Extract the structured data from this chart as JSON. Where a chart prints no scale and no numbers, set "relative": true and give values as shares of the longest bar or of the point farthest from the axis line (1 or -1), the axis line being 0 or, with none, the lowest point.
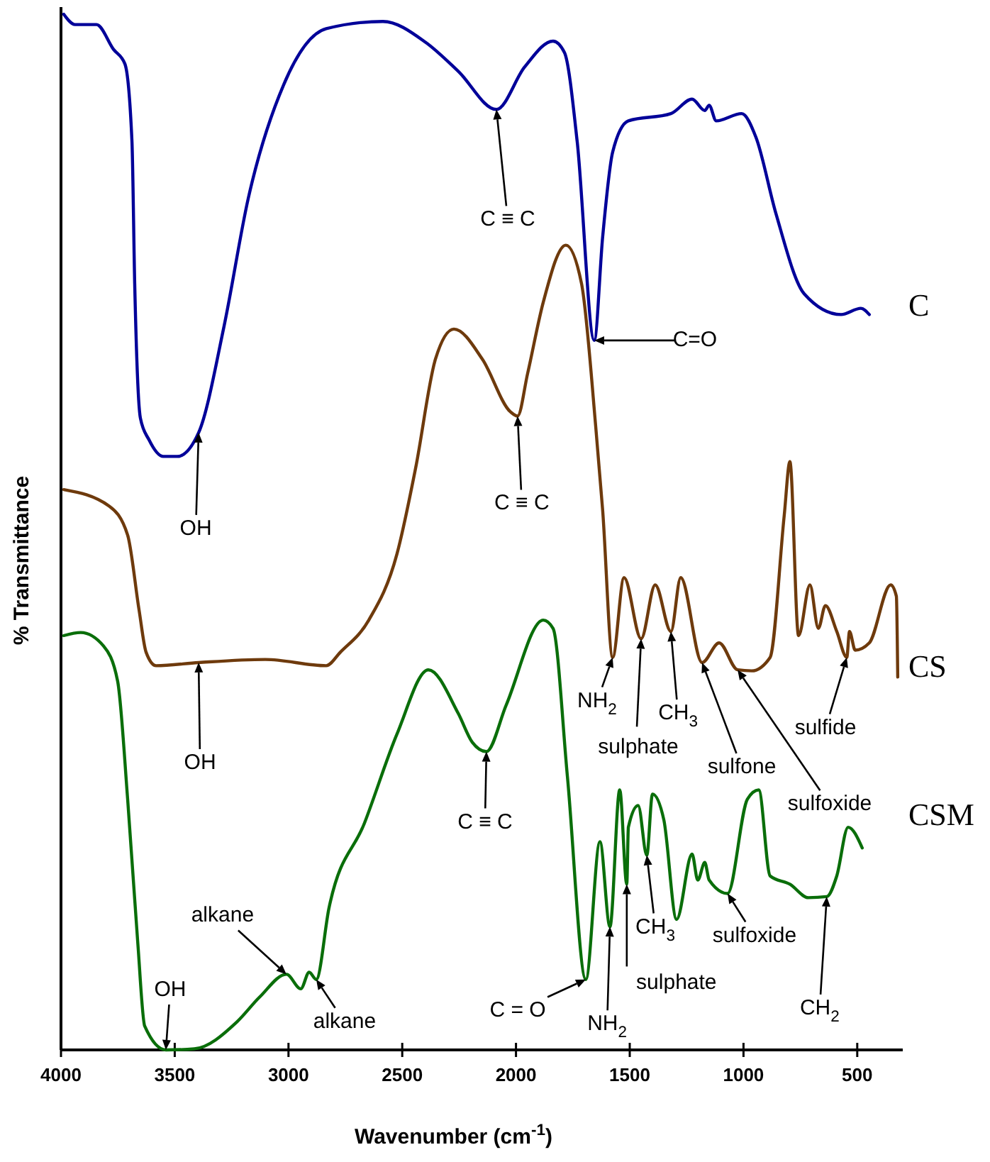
{
  "chart_data": {
    "type": "line",
    "relative": true,
    "xlabel": "Wavenumber (cm$^{-1}$)",
    "ylabel": "% Transmittance",
    "xlim": [
      4000,
      300
    ],
    "xticks": [
      4000,
      3500,
      3000,
      2500,
      2000,
      1500,
      1000,
      500
    ],
    "series": [
      {
        "name": "C",
        "color": "#000099",
        "x": [
          3988,
          3938,
          3844,
          3769,
          3719,
          3688,
          3676,
          3651,
          3613,
          3551,
          3489,
          3395,
          3283,
          3177,
          3021,
          2834,
          2585,
          2398,
          2254,
          2086,
          1962,
          1837,
          1787,
          1731,
          1656,
          1619,
          1575,
          1506,
          1319,
          1226,
          1170,
          1151,
          1120,
          1008,
          945,
          858,
          733,
          571,
          484,
          447
        ],
        "values": [
          1,
          0.99,
          0.99,
          0.966,
          0.952,
          0.877,
          0.74,
          0.61,
          0.589,
          0.573,
          0.573,
          0.596,
          0.699,
          0.822,
          0.932,
          0.986,
          0.993,
          0.973,
          0.945,
          0.908,
          0.949,
          0.974,
          0.963,
          0.877,
          0.685,
          0.785,
          0.867,
          0.897,
          0.904,
          0.918,
          0.907,
          0.912,
          0.897,
          0.904,
          0.881,
          0.808,
          0.73,
          0.71,
          0.716,
          0.71
        ]
      },
      {
        "name": "CS",
        "color": "#6e3a0c",
        "x": [
          3988,
          3788,
          3707,
          3657,
          3626,
          3582,
          3395,
          3102,
          2834,
          2772,
          2647,
          2523,
          2441,
          2354,
          2273,
          2148,
          2024,
          1993,
          1949,
          1880,
          1781,
          1712,
          1650,
          1619,
          1575,
          1525,
          1450,
          1388,
          1319,
          1276,
          1182,
          1107,
          1026,
          964,
          883,
          821,
          796,
          758,
          708,
          671,
          640,
          590,
          546,
          534,
          509,
          447,
          353,
          328,
          322
        ],
        "values": [
          0.541,
          0.525,
          0.497,
          0.425,
          0.384,
          0.371,
          0.374,
          0.377,
          0.371,
          0.384,
          0.415,
          0.479,
          0.562,
          0.667,
          0.696,
          0.667,
          0.616,
          0.612,
          0.653,
          0.722,
          0.777,
          0.74,
          0.603,
          0.521,
          0.379,
          0.456,
          0.397,
          0.449,
          0.404,
          0.456,
          0.374,
          0.393,
          0.367,
          0.366,
          0.379,
          0.516,
          0.568,
          0.4,
          0.449,
          0.407,
          0.429,
          0.404,
          0.379,
          0.404,
          0.386,
          0.393,
          0.449,
          0.438,
          0.36
        ]
      },
      {
        "name": "CSM",
        "color": "#0a6e0a",
        "x": [
          3988,
          3913,
          3813,
          3751,
          3707,
          3663,
          3632,
          3539,
          3414,
          3227,
          3127,
          3009,
          2946,
          2909,
          2878,
          2822,
          2666,
          2523,
          2385,
          2254,
          2192,
          2130,
          2043,
          1880,
          1837,
          1774,
          1693,
          1631,
          1587,
          1544,
          1513,
          1506,
          1463,
          1425,
          1400,
          1350,
          1294,
          1226,
          1201,
          1170,
          1151,
          1070,
          983,
          933,
          883,
          796,
          715,
          634,
          590,
          540,
          478
        ],
        "values": [
          0.4,
          0.403,
          0.39,
          0.356,
          0.242,
          0.105,
          0.023,
          0,
          0.001,
          0.027,
          0.051,
          0.073,
          0.059,
          0.075,
          0.068,
          0.137,
          0.219,
          0.305,
          0.367,
          0.325,
          0.297,
          0.288,
          0.333,
          0.415,
          0.407,
          0.264,
          0.068,
          0.201,
          0.119,
          0.251,
          0.16,
          0.215,
          0.236,
          0.188,
          0.247,
          0.222,
          0.126,
          0.189,
          0.164,
          0.181,
          0.164,
          0.151,
          0.242,
          0.251,
          0.168,
          0.16,
          0.147,
          0.148,
          0.168,
          0.215,
          0.195
        ]
      }
    ],
    "annotations": [
      {
        "text": "C ≡ C",
        "x": 2086,
        "y": 0.908
      },
      {
        "text": "C=O",
        "x": 1656,
        "y": 0.685
      },
      {
        "text": "OH",
        "x": 3395,
        "y": 0.596
      },
      {
        "text": "C ≡ C",
        "x": 1993,
        "y": 0.612
      },
      {
        "text": "OH",
        "x": 3395,
        "y": 0.374
      },
      {
        "text": "NH$_{2}$",
        "x": 1575,
        "y": 0.379
      },
      {
        "text": "sulphate",
        "x": 1450,
        "y": 0.397
      },
      {
        "text": "CH$_{3}$",
        "x": 1319,
        "y": 0.404
      },
      {
        "text": "sulfone",
        "x": 1182,
        "y": 0.374
      },
      {
        "text": "sulfoxide",
        "x": 1026,
        "y": 0.367
      },
      {
        "text": "sulfide",
        "x": 546,
        "y": 0.379
      },
      {
        "text": "C ≡ C",
        "x": 2130,
        "y": 0.288
      },
      {
        "text": "alkane",
        "x": 3009,
        "y": 0.073
      },
      {
        "text": "alkane",
        "x": 2878,
        "y": 0.068
      },
      {
        "text": "OH",
        "x": 3539,
        "y": 0
      },
      {
        "text": "C = O",
        "x": 1693,
        "y": 0.068
      },
      {
        "text": "NH$_{2}$",
        "x": 1587,
        "y": 0.119
      },
      {
        "text": "sulphate",
        "x": 1513,
        "y": 0.16
      },
      {
        "text": "CH$_{3}$",
        "x": 1425,
        "y": 0.188
      },
      {
        "text": "sulfoxide",
        "x": 1070,
        "y": 0.151
      },
      {
        "text": "CH$_{2}$",
        "x": 634,
        "y": 0.148
      }
    ]
  }
}
